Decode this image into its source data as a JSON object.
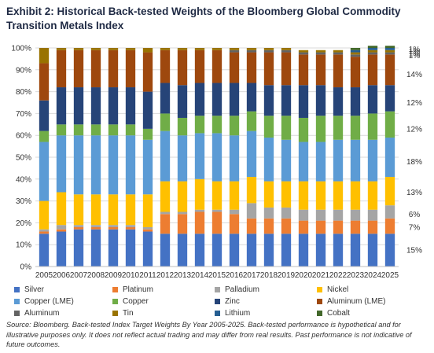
{
  "title": "Exhibit 2: Historical Back-tested Weights of the Bloomberg Global Commodity Transition Metals Index",
  "source_note": "Source: Bloomberg. Back-tested Index Target Weights By Year 2005-2025. Back-tested performance is hypothetical and for illustrative purposes only. It does not reflect actual trading and may differ from real results. Past performance is not indicative of future outcomes.",
  "chart_data": {
    "type": "bar",
    "stacked": true,
    "categories": [
      "2005",
      "2006",
      "2007",
      "2008",
      "2009",
      "2010",
      "2011",
      "2012",
      "2013",
      "2014",
      "2015",
      "2016",
      "2017",
      "2018",
      "2019",
      "2020",
      "2021",
      "2022",
      "2023",
      "2024",
      "2025"
    ],
    "ylim": [
      0,
      100
    ],
    "y_ticks": [
      "0%",
      "10%",
      "20%",
      "30%",
      "40%",
      "50%",
      "60%",
      "70%",
      "80%",
      "90%",
      "100%"
    ],
    "series": [
      {
        "name": "Silver",
        "color": "#4472c4",
        "values": [
          15,
          16,
          17,
          17,
          17,
          17,
          16,
          15,
          15,
          15,
          15,
          15,
          15,
          15,
          15,
          15,
          15,
          15,
          15,
          15,
          15
        ]
      },
      {
        "name": "Platinum",
        "color": "#ed7d31",
        "values": [
          1,
          1,
          1,
          1,
          1,
          1,
          1,
          9,
          9,
          10,
          10,
          9,
          7,
          7,
          7,
          6,
          6,
          6,
          6,
          6,
          7
        ]
      },
      {
        "name": "Palladium",
        "color": "#a5a5a5",
        "values": [
          1,
          2,
          1,
          1,
          1,
          1,
          1,
          1,
          1,
          1,
          1,
          2,
          7,
          5,
          5,
          5,
          5,
          5,
          5,
          5,
          6
        ]
      },
      {
        "name": "Nickel",
        "color": "#ffc000",
        "values": [
          13,
          15,
          14,
          14,
          14,
          14,
          15,
          14,
          14,
          14,
          13,
          13,
          12,
          12,
          12,
          13,
          13,
          13,
          13,
          13,
          13
        ]
      },
      {
        "name": "Copper (LME)",
        "color": "#5b9bd5",
        "values": [
          27,
          26,
          27,
          27,
          27,
          27,
          25,
          23,
          21,
          21,
          22,
          21,
          21,
          20,
          19,
          18,
          18,
          19,
          19,
          19,
          18
        ]
      },
      {
        "name": "Copper",
        "color": "#70ad47",
        "values": [
          5,
          5,
          5,
          5,
          5,
          5,
          5,
          8,
          8,
          8,
          8,
          9,
          9,
          10,
          11,
          11,
          12,
          11,
          11,
          12,
          12
        ]
      },
      {
        "name": "Zinc",
        "color": "#264478",
        "values": [
          14,
          17,
          17,
          17,
          17,
          17,
          17,
          14,
          15,
          15,
          15,
          15,
          13,
          14,
          14,
          15,
          14,
          13,
          13,
          13,
          12
        ]
      },
      {
        "name": "Aluminum (LME)",
        "color": "#9e480e",
        "values": [
          17,
          17,
          17,
          17,
          17,
          17,
          18,
          15,
          16,
          15,
          15,
          14,
          14,
          15,
          15,
          14,
          14,
          15,
          14,
          14,
          14
        ]
      },
      {
        "name": "Aluminum",
        "color": "#636363",
        "values": [
          0,
          0,
          0,
          0,
          0,
          0,
          0,
          0,
          0,
          0,
          0,
          1,
          1,
          1,
          1,
          1,
          1,
          1,
          1,
          1,
          1
        ]
      },
      {
        "name": "Tin",
        "color": "#997300",
        "values": [
          7,
          1,
          1,
          1,
          1,
          1,
          2,
          1,
          1,
          1,
          1,
          1,
          1,
          1,
          1,
          1,
          1,
          1,
          1,
          1,
          1
        ]
      },
      {
        "name": "Lithium",
        "color": "#255e91",
        "values": [
          0,
          0,
          0,
          0,
          0,
          0,
          0,
          0,
          0,
          0,
          0,
          0,
          0,
          0,
          0,
          0,
          0,
          0,
          1,
          1,
          1
        ]
      },
      {
        "name": "Cobalt",
        "color": "#43682b",
        "values": [
          0,
          0,
          0,
          0,
          0,
          0,
          0,
          0,
          0,
          0,
          0,
          0,
          0,
          0,
          0,
          0,
          0,
          0,
          1,
          1,
          1
        ]
      }
    ],
    "annotations": [
      {
        "text": "1%",
        "y": 99.5
      },
      {
        "text": "1%",
        "y": 98.5
      },
      {
        "text": "1%",
        "y": 97.5
      },
      {
        "text": "1%",
        "y": 96.5
      },
      {
        "text": "14%",
        "y": 88
      },
      {
        "text": "12%",
        "y": 75
      },
      {
        "text": "12%",
        "y": 63
      },
      {
        "text": "18%",
        "y": 48
      },
      {
        "text": "13%",
        "y": 34
      },
      {
        "text": "6%",
        "y": 24
      },
      {
        "text": "7%",
        "y": 18
      },
      {
        "text": "15%",
        "y": 7.5
      }
    ],
    "legend_position": "bottom"
  }
}
